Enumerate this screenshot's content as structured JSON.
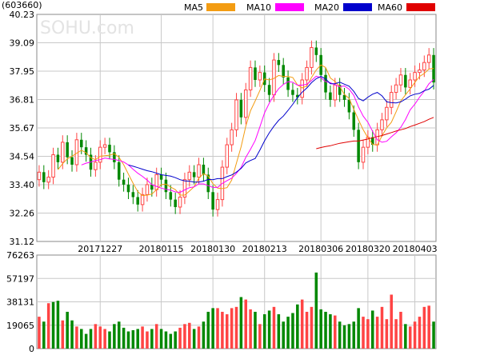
{
  "header": {
    "code": "(603660)",
    "watermark": "SOHU.com"
  },
  "legend": [
    {
      "label": "MA5",
      "color": "#f39c12"
    },
    {
      "label": "MA10",
      "color": "#ff00ff"
    },
    {
      "label": "MA20",
      "color": "#0000cc"
    },
    {
      "label": "MA60",
      "color": "#e00000"
    }
  ],
  "colors": {
    "up": "#ff4444",
    "down": "#008800",
    "grid": "#c8c8c8",
    "axis_text": "#000000"
  },
  "chart_data": [
    {
      "type": "candlestick",
      "title": "",
      "ylim": [
        31.12,
        40.23
      ],
      "y_ticks": [
        "40.23",
        "39.09",
        "37.95",
        "36.81",
        "35.67",
        "34.54",
        "33.40",
        "32.26",
        "31.12"
      ],
      "x_tick_labels": [
        {
          "label": "20171227",
          "index": 13
        },
        {
          "label": "20180115",
          "index": 26
        },
        {
          "label": "20180130",
          "index": 37
        },
        {
          "label": "20180213",
          "index": 48
        },
        {
          "label": "20180306",
          "index": 60
        },
        {
          "label": "20180320",
          "index": 70
        },
        {
          "label": "20180403",
          "index": 80
        }
      ],
      "closes": [
        33.9,
        33.5,
        33.7,
        34.6,
        34.3,
        35.1,
        34.5,
        34.2,
        35.2,
        34.9,
        34.6,
        34.0,
        34.3,
        34.9,
        35.0,
        34.7,
        34.3,
        33.6,
        33.4,
        33.1,
        32.9,
        32.6,
        33.0,
        33.4,
        33.2,
        33.8,
        33.6,
        33.1,
        32.8,
        32.5,
        32.9,
        33.6,
        33.9,
        33.7,
        34.2,
        33.8,
        33.1,
        32.4,
        32.8,
        34.1,
        35.0,
        35.6,
        36.8,
        36.1,
        37.2,
        38.1,
        37.6,
        37.9,
        37.4,
        37.0,
        38.4,
        38.2,
        37.7,
        37.2,
        37.0,
        36.9,
        37.6,
        38.1,
        38.9,
        38.6,
        37.8,
        37.1,
        36.8,
        37.4,
        37.0,
        36.8,
        36.3,
        35.6,
        34.3,
        34.9,
        35.3,
        35.0,
        35.6,
        36.0,
        36.5,
        37.1,
        37.4,
        37.8,
        37.3,
        37.6,
        37.9,
        38.0,
        38.3,
        38.6,
        37.5
      ],
      "series": [
        {
          "name": "MA5",
          "values": [
            null,
            null,
            null,
            null,
            34.0,
            34.24,
            34.44,
            34.54,
            34.66,
            34.78,
            34.68,
            34.48,
            34.4,
            34.54,
            34.56,
            34.58,
            34.64,
            34.5,
            34.2,
            33.82,
            33.46,
            33.12,
            32.96,
            32.98,
            33.02,
            33.2,
            33.4,
            33.42,
            33.3,
            33.2,
            32.98,
            32.98,
            33.14,
            33.32,
            33.66,
            33.84,
            33.74,
            33.44,
            33.26,
            33.24,
            33.28,
            33.58,
            34.26,
            34.92,
            35.74,
            36.36,
            36.76,
            37.18,
            37.64,
            37.6,
            37.66,
            37.78,
            37.74,
            37.74,
            37.7,
            37.4,
            37.28,
            37.36,
            37.7,
            38.0,
            38.2,
            38.1,
            37.68,
            37.54,
            37.34,
            37.02,
            36.86,
            36.42,
            36.0,
            35.6,
            35.28,
            35.02,
            34.98,
            35.36,
            35.68,
            35.9,
            36.32,
            36.76,
            37.0,
            37.24,
            37.5,
            37.74,
            37.86,
            38.04,
            38.06
          ]
        },
        {
          "name": "MA10",
          "values": [
            null,
            null,
            null,
            null,
            null,
            null,
            null,
            null,
            null,
            34.19,
            34.26,
            34.31,
            34.37,
            34.4,
            34.47,
            34.43,
            34.41,
            34.37,
            34.31,
            34.19,
            34.02,
            33.86,
            33.73,
            33.58,
            33.4,
            33.33,
            33.26,
            33.21,
            33.18,
            33.11,
            33.09,
            33.19,
            33.28,
            33.31,
            33.43,
            33.43,
            33.36,
            33.29,
            33.29,
            33.45,
            33.56,
            33.66,
            33.85,
            34.09,
            34.49,
            34.82,
            35.17,
            35.72,
            36.28,
            36.67,
            36.99,
            37.25,
            37.42,
            37.53,
            37.51,
            37.39,
            37.39,
            37.43,
            37.58,
            37.75,
            37.69,
            37.53,
            37.49,
            37.4,
            37.33,
            37.36,
            37.23,
            36.98,
            36.52,
            36.15,
            35.9,
            35.54,
            35.2,
            35.1,
            35.14,
            35.32,
            35.48,
            35.7,
            36.01,
            36.4,
            36.63,
            36.91,
            37.15,
            37.45,
            37.62
          ]
        },
        {
          "name": "MA20",
          "values": [
            null,
            null,
            null,
            null,
            null,
            null,
            null,
            null,
            null,
            null,
            null,
            null,
            null,
            null,
            null,
            null,
            null,
            null,
            null,
            34.19,
            34.14,
            34.08,
            34.02,
            33.96,
            33.92,
            33.86,
            33.8,
            33.77,
            33.74,
            33.68,
            33.6,
            33.55,
            33.54,
            33.5,
            33.5,
            33.54,
            33.61,
            33.6,
            33.64,
            33.64,
            33.72,
            33.79,
            33.9,
            34.05,
            34.27,
            34.37,
            34.45,
            34.79,
            35.16,
            35.48,
            35.75,
            35.98,
            36.15,
            36.38,
            36.62,
            36.89,
            37.11,
            37.28,
            37.49,
            37.65,
            37.74,
            37.64,
            37.45,
            37.45,
            37.51,
            37.43,
            37.35,
            37.14,
            36.86,
            36.76,
            36.91,
            37.03,
            37.1,
            36.96,
            36.72,
            36.69,
            36.68,
            36.72,
            36.83,
            36.96,
            37.03,
            37.06,
            37.17,
            37.23,
            37.38
          ]
        },
        {
          "name": "MA60",
          "values": [
            null,
            null,
            null,
            null,
            null,
            null,
            null,
            null,
            null,
            null,
            null,
            null,
            null,
            null,
            null,
            null,
            null,
            null,
            null,
            null,
            null,
            null,
            null,
            null,
            null,
            null,
            null,
            null,
            null,
            null,
            null,
            null,
            null,
            null,
            null,
            null,
            null,
            null,
            null,
            null,
            null,
            null,
            null,
            null,
            null,
            null,
            null,
            null,
            null,
            null,
            null,
            null,
            null,
            null,
            null,
            null,
            null,
            null,
            null,
            34.84,
            34.89,
            34.93,
            34.96,
            35.01,
            35.06,
            35.09,
            35.12,
            35.15,
            35.15,
            35.19,
            35.23,
            35.28,
            35.33,
            35.37,
            35.43,
            35.49,
            35.55,
            35.6,
            35.65,
            35.73,
            35.79,
            35.86,
            35.93,
            36.02,
            36.1
          ]
        }
      ]
    },
    {
      "type": "bar",
      "title": "",
      "ylim": [
        0,
        76263
      ],
      "y_ticks": [
        "76263",
        "57197",
        "38131",
        "19065",
        "0"
      ],
      "values": [
        26000,
        22000,
        37000,
        38000,
        39000,
        23000,
        30000,
        23000,
        18000,
        16000,
        12000,
        16000,
        20000,
        18000,
        16000,
        14000,
        20000,
        22000,
        17000,
        14000,
        15000,
        16000,
        18000,
        14000,
        16000,
        20000,
        16000,
        14000,
        12000,
        14000,
        17000,
        20000,
        21000,
        16000,
        18000,
        22000,
        30000,
        33000,
        33000,
        30000,
        28000,
        33000,
        34000,
        42000,
        40000,
        32000,
        30000,
        20000,
        28000,
        31000,
        34000,
        28000,
        22000,
        26000,
        29000,
        36000,
        40000,
        30000,
        34000,
        62000,
        32000,
        30000,
        28000,
        27000,
        22000,
        19000,
        20000,
        22000,
        33000,
        26000,
        24000,
        31000,
        26000,
        34000,
        24000,
        44000,
        24000,
        30000,
        20000,
        18000,
        22000,
        26000,
        34000,
        35000,
        22000
      ],
      "up": [
        true,
        false,
        true,
        false,
        false,
        true,
        false,
        false,
        true,
        false,
        false,
        false,
        true,
        true,
        true,
        false,
        false,
        false,
        false,
        false,
        false,
        false,
        true,
        true,
        false,
        true,
        false,
        false,
        false,
        false,
        true,
        true,
        true,
        false,
        true,
        false,
        false,
        false,
        true,
        true,
        true,
        true,
        true,
        false,
        true,
        true,
        false,
        true,
        false,
        false,
        true,
        false,
        false,
        false,
        false,
        false,
        true,
        true,
        true,
        false,
        false,
        false,
        false,
        true,
        false,
        false,
        false,
        false,
        false,
        true,
        true,
        false,
        true,
        true,
        true,
        true,
        true,
        true,
        false,
        true,
        true,
        true,
        true,
        true,
        false
      ]
    }
  ]
}
